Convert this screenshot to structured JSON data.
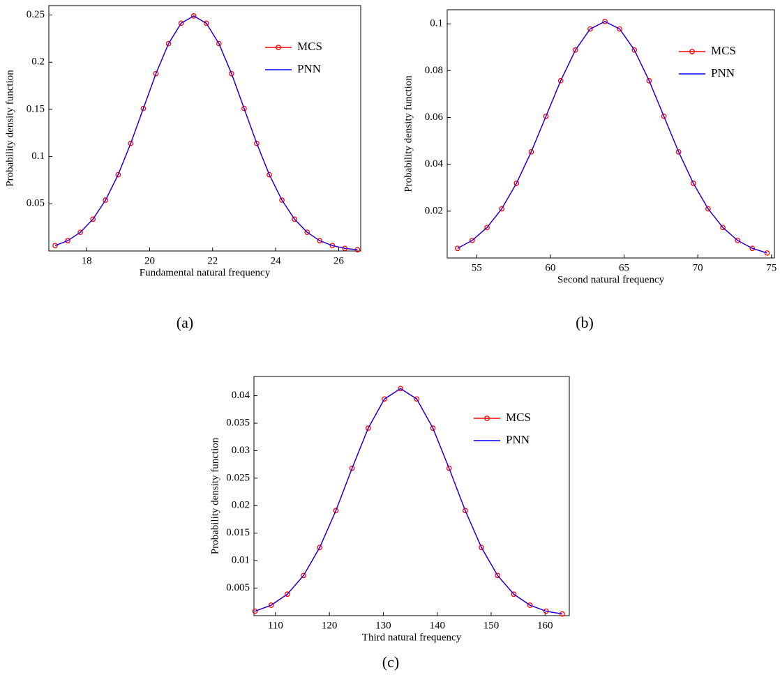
{
  "chart_data": [
    {
      "type": "line",
      "caption": "(a)",
      "xlabel": "Fundamental natural frequency",
      "ylabel": "Probability density function",
      "x": [
        17,
        17.4,
        17.8,
        18.2,
        18.6,
        19.0,
        19.4,
        19.8,
        20.2,
        20.6,
        21.0,
        21.4,
        21.8,
        22.2,
        22.6,
        23.0,
        23.4,
        23.8,
        24.2,
        24.6,
        25.0,
        25.4,
        25.8,
        26.2,
        26.6
      ],
      "series": [
        {
          "name": "MCS",
          "color": "#ff0000",
          "marker": "circle",
          "values": [
            0.0057,
            0.0109,
            0.0198,
            0.0337,
            0.0539,
            0.0808,
            0.114,
            0.151,
            0.1879,
            0.2197,
            0.2413,
            0.249,
            0.2413,
            0.2197,
            0.1879,
            0.151,
            0.114,
            0.0808,
            0.0539,
            0.0337,
            0.0198,
            0.0109,
            0.0057,
            0.0028,
            0.0013
          ]
        },
        {
          "name": "PNN",
          "color": "#0000ff",
          "values": [
            0.0057,
            0.0109,
            0.0198,
            0.0337,
            0.0539,
            0.0808,
            0.114,
            0.151,
            0.1879,
            0.2197,
            0.2413,
            0.249,
            0.2413,
            0.2197,
            0.1879,
            0.151,
            0.114,
            0.0808,
            0.0539,
            0.0337,
            0.0198,
            0.0109,
            0.0057,
            0.0028,
            0.0013
          ]
        }
      ],
      "xlim": [
        16.8,
        26.7
      ],
      "ylim": [
        0,
        0.26
      ],
      "xticks": [
        18,
        20,
        22,
        24,
        26
      ],
      "yticks": [
        0.05,
        0.1,
        0.15,
        0.2,
        0.25
      ],
      "legend": "upper right"
    },
    {
      "type": "line",
      "caption": "(b)",
      "xlabel": "Second natural frequency",
      "ylabel": "Probability density function",
      "x": [
        53.7,
        54.7,
        55.7,
        56.7,
        57.7,
        58.7,
        59.7,
        60.7,
        61.7,
        62.7,
        63.7,
        64.7,
        65.7,
        66.7,
        67.7,
        68.7,
        69.7,
        70.7,
        71.7,
        72.7,
        73.7,
        74.7
      ],
      "series": [
        {
          "name": "MCS",
          "color": "#ff0000",
          "marker": "circle",
          "values": [
            0.0041,
            0.0075,
            0.013,
            0.021,
            0.0319,
            0.0453,
            0.0605,
            0.0757,
            0.0888,
            0.0978,
            0.101,
            0.0978,
            0.0888,
            0.0757,
            0.0605,
            0.0453,
            0.0319,
            0.021,
            0.013,
            0.0075,
            0.0041,
            0.0021
          ]
        },
        {
          "name": "PNN",
          "color": "#0000ff",
          "values": [
            0.0041,
            0.0075,
            0.013,
            0.021,
            0.0319,
            0.0453,
            0.0605,
            0.0757,
            0.0888,
            0.0978,
            0.101,
            0.0978,
            0.0888,
            0.0757,
            0.0605,
            0.0453,
            0.0319,
            0.021,
            0.013,
            0.0075,
            0.0041,
            0.0021
          ]
        }
      ],
      "xlim": [
        53,
        75.2
      ],
      "ylim": [
        0,
        0.106
      ],
      "xticks": [
        55,
        60,
        65,
        70,
        75
      ],
      "yticks": [
        0.02,
        0.04,
        0.06,
        0.08,
        0.1
      ],
      "legend": "upper right"
    },
    {
      "type": "line",
      "caption": "(c)",
      "xlabel": "Third natural frequency",
      "ylabel": "Probability density function",
      "x": [
        106.2,
        109.2,
        112.2,
        115.2,
        118.2,
        121.2,
        124.2,
        127.2,
        130.2,
        133.2,
        136.2,
        139.2,
        142.2,
        145.2,
        148.2,
        151.2,
        154.2,
        157.2,
        160.2,
        163.2
      ],
      "series": [
        {
          "name": "MCS",
          "color": "#ff0000",
          "marker": "circle",
          "values": [
            0.0008,
            0.0019,
            0.0039,
            0.0073,
            0.0124,
            0.0191,
            0.0268,
            0.0341,
            0.0394,
            0.0413,
            0.0394,
            0.0341,
            0.0268,
            0.0191,
            0.0124,
            0.0073,
            0.0039,
            0.0019,
            0.0008,
            0.0003
          ]
        },
        {
          "name": "PNN",
          "color": "#0000ff",
          "values": [
            0.0008,
            0.0019,
            0.0039,
            0.0073,
            0.0124,
            0.0191,
            0.0268,
            0.0341,
            0.0394,
            0.0413,
            0.0394,
            0.0341,
            0.0268,
            0.0191,
            0.0124,
            0.0073,
            0.0039,
            0.0019,
            0.0008,
            0.0003
          ]
        }
      ],
      "xlim": [
        106,
        164.5
      ],
      "ylim": [
        0,
        0.0435
      ],
      "xticks": [
        110,
        120,
        130,
        140,
        150,
        160
      ],
      "yticks": [
        0.005,
        0.01,
        0.015,
        0.02,
        0.025,
        0.03,
        0.035,
        0.04
      ],
      "legend": "upper right"
    }
  ]
}
